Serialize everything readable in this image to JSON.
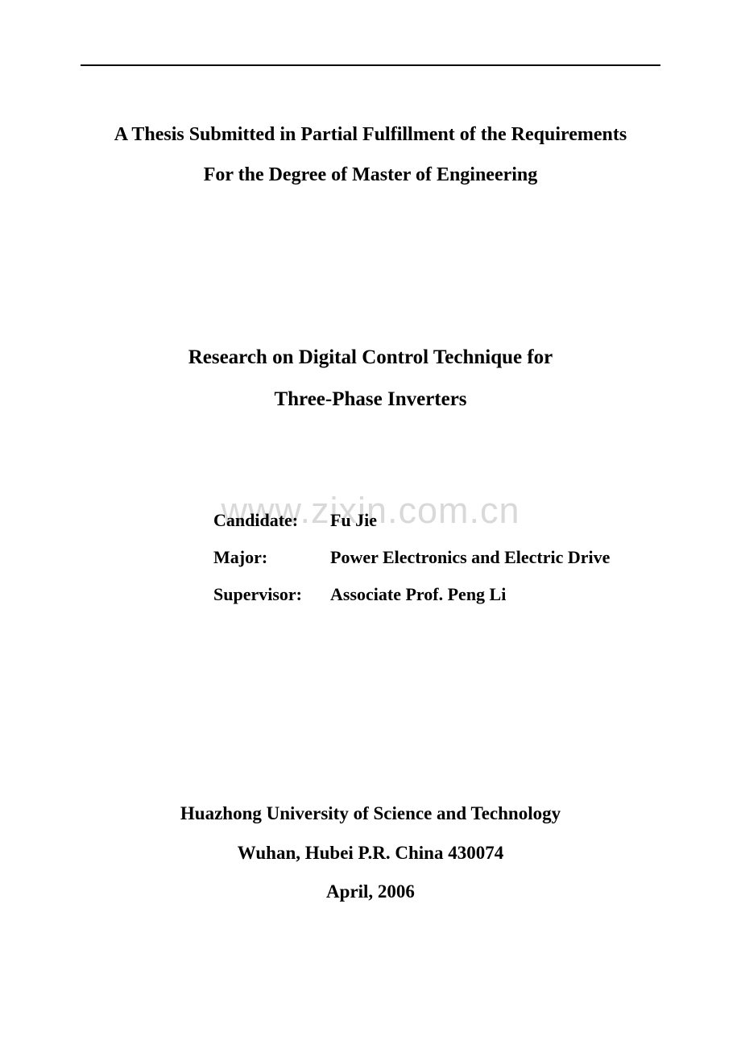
{
  "submission": {
    "line1": "A Thesis Submitted in Partial Fulfillment of the Requirements",
    "line2": "For the Degree of Master of Engineering"
  },
  "title": {
    "line1": "Research on Digital Control Technique for",
    "line2": "Three-Phase Inverters"
  },
  "watermark": "www.zixin.com.cn",
  "info": {
    "candidate_label": "Candidate:",
    "candidate_value": "Fu Jie",
    "major_label": "Major:",
    "major_value": "Power Electronics and Electric Drive",
    "supervisor_label": "Supervisor:",
    "supervisor_value": "Associate Prof. Peng Li"
  },
  "footer": {
    "university": "Huazhong University of Science and Technology",
    "location": "Wuhan, Hubei P.R. China 430074",
    "date": "April, 2006"
  },
  "colors": {
    "background": "#ffffff",
    "text": "#000000",
    "watermark": "#d9d9d9",
    "rule": "#000000"
  },
  "typography": {
    "font_family": "Times New Roman",
    "submission_fontsize": 24,
    "title_fontsize": 25,
    "info_fontsize": 22,
    "footer_fontsize": 23,
    "watermark_fontsize": 45,
    "font_weight": "bold",
    "line_height": 2.1
  }
}
